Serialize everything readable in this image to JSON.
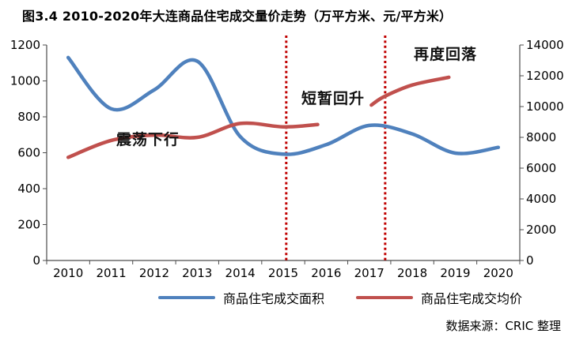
{
  "title": "图3.4  2010-2020年大连商品住宅成交量价走势（万平方米、元/平方米）",
  "source": "数据来源：CRIC 整理",
  "colors": {
    "area_series": "#4F81BD",
    "price_series": "#C0504D",
    "vline": "#C00000",
    "axis": "#4d4d4d",
    "text": "#000000"
  },
  "legend": {
    "items": [
      {
        "label": "商品住宅成交面积",
        "color": "#4F81BD"
      },
      {
        "label": "商品住宅成交均价",
        "color": "#C0504D"
      }
    ]
  },
  "chart_data": {
    "type": "line",
    "title": "图3.4  2010-2020年大连商品住宅成交量价走势（万平方米、元/平方米）",
    "categories": [
      "2010",
      "2011",
      "2012",
      "2013",
      "2014",
      "2015",
      "2016",
      "2017",
      "2018",
      "2019",
      "2020"
    ],
    "left_axis": {
      "min": 0,
      "max": 1200,
      "step": 200,
      "ticks": [
        "0",
        "200",
        "400",
        "600",
        "800",
        "1000",
        "1200"
      ],
      "unit": "万平方米"
    },
    "right_axis": {
      "min": 0,
      "max": 14000,
      "step": 2000,
      "ticks": [
        "0",
        "2000",
        "4000",
        "6000",
        "8000",
        "10000",
        "12000",
        "14000"
      ],
      "unit": "元/平方米"
    },
    "grid": false,
    "legend_position": "bottom",
    "series": [
      {
        "name": "商品住宅成交面积",
        "axis": "left",
        "color": "#4F81BD",
        "line_width": 4.5,
        "points": [
          [
            2010,
            1130
          ],
          [
            2011,
            845
          ],
          [
            2012,
            950
          ],
          [
            2013,
            1110
          ],
          [
            2014,
            690
          ],
          [
            2015,
            592
          ],
          [
            2016,
            645
          ],
          [
            2017,
            752
          ],
          [
            2018,
            705
          ],
          [
            2019,
            598
          ],
          [
            2020,
            630
          ]
        ]
      },
      {
        "name": "商品住宅成交均价",
        "axis": "right",
        "color": "#C0504D",
        "line_width": 4.5,
        "segments": [
          [
            [
              2010,
              6700
            ],
            [
              2011,
              7800
            ],
            [
              2012,
              8150
            ],
            [
              2013,
              8000
            ],
            [
              2014,
              8900
            ],
            [
              2015,
              8680
            ],
            [
              2015.8,
              8830
            ]
          ],
          [
            [
              2017.05,
              10100
            ],
            [
              2017.35,
              10650
            ],
            [
              2018,
              11400
            ],
            [
              2018.85,
              11900
            ]
          ]
        ]
      }
    ],
    "vlines": [
      {
        "x": 2015.07,
        "color": "#C00000"
      },
      {
        "x": 2017.37,
        "color": "#C00000"
      }
    ],
    "annotations": [
      {
        "text": "震荡下行"
      },
      {
        "text": "短暂回升"
      },
      {
        "text": "再度回落"
      }
    ]
  }
}
